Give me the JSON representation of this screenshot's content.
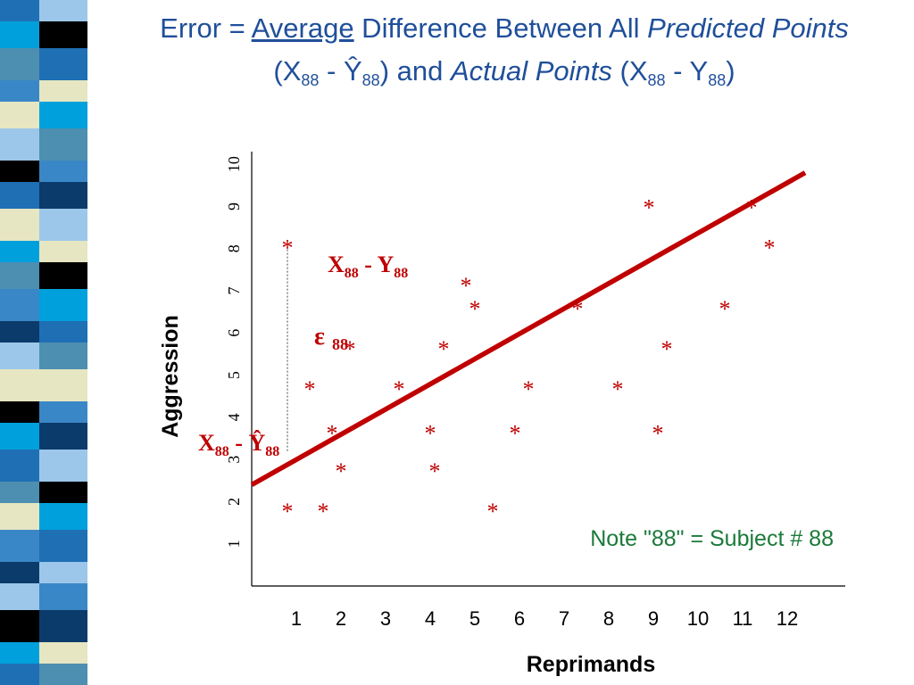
{
  "title": {
    "line1": {
      "prefix": "Error = ",
      "avg": "Average",
      "mid": " Difference Between All ",
      "pred": "Predicted Points"
    },
    "line2": {
      "open1": "(X",
      "sub1": "88",
      "dash1": " - Ŷ",
      "sub2": "88",
      "close1": ")",
      "and": " and ",
      "actual": "Actual Points",
      "open2": " (X",
      "sub3": "88",
      "dash2": " - Y",
      "sub4": "88",
      "close2": ")"
    }
  },
  "colors": {
    "title": "#1f4f9a",
    "marks": "#c00000",
    "note": "#1b7a3a",
    "stripe_palette": [
      "#1f6fb5",
      "#3a87c7",
      "#000000",
      "#e6e6c2",
      "#00a0dc",
      "#0b3b6b",
      "#9cc7ea",
      "#4d8fb0"
    ]
  },
  "chart_data": {
    "type": "scatter",
    "xlabel": "Reprimands",
    "ylabel": "Aggression",
    "x_ticks": [
      "1",
      "2",
      "3",
      "4",
      "5",
      "6",
      "7",
      "8",
      "9",
      "10",
      "11",
      "12"
    ],
    "y_ticks": [
      "1",
      "2",
      "3",
      "4",
      "5",
      "6",
      "7",
      "8",
      "9",
      "10"
    ],
    "xlim": [
      0,
      13.3
    ],
    "ylim": [
      0,
      10.3
    ],
    "grid": false,
    "marker": "*",
    "points": [
      {
        "x": 0.8,
        "y": 8.15
      },
      {
        "x": 0.8,
        "y": 1.9
      },
      {
        "x": 1.3,
        "y": 4.8
      },
      {
        "x": 1.6,
        "y": 1.9
      },
      {
        "x": 1.8,
        "y": 3.75
      },
      {
        "x": 2.0,
        "y": 2.85
      },
      {
        "x": 2.2,
        "y": 5.75
      },
      {
        "x": 3.3,
        "y": 4.8
      },
      {
        "x": 4.0,
        "y": 3.75
      },
      {
        "x": 4.1,
        "y": 2.85
      },
      {
        "x": 4.3,
        "y": 5.75
      },
      {
        "x": 4.8,
        "y": 7.25
      },
      {
        "x": 5.0,
        "y": 6.7
      },
      {
        "x": 5.4,
        "y": 1.9
      },
      {
        "x": 5.9,
        "y": 3.75
      },
      {
        "x": 6.2,
        "y": 4.8
      },
      {
        "x": 7.3,
        "y": 6.7
      },
      {
        "x": 8.2,
        "y": 4.8
      },
      {
        "x": 8.9,
        "y": 9.1
      },
      {
        "x": 9.1,
        "y": 3.75
      },
      {
        "x": 9.3,
        "y": 5.75
      },
      {
        "x": 10.6,
        "y": 6.7
      },
      {
        "x": 11.2,
        "y": 9.1
      },
      {
        "x": 11.6,
        "y": 8.15
      }
    ],
    "regression_line": {
      "x": [
        0,
        12.4
      ],
      "y": [
        2.4,
        9.8
      ]
    },
    "annotations": {
      "actual_label": {
        "x": "X",
        "sub": "88",
        "mid": " - Y",
        "sub2": "88"
      },
      "epsilon": {
        "sym": "ε",
        "sub": "88"
      },
      "predicted_label": {
        "x": "X",
        "sub": "88",
        "mid": " - Ŷ",
        "sub2": "88"
      },
      "residual_segment": {
        "x": 0.8,
        "y_from": 3.2,
        "y_to": 8.15
      }
    },
    "note": "Note \"88\" = Subject # 88"
  }
}
